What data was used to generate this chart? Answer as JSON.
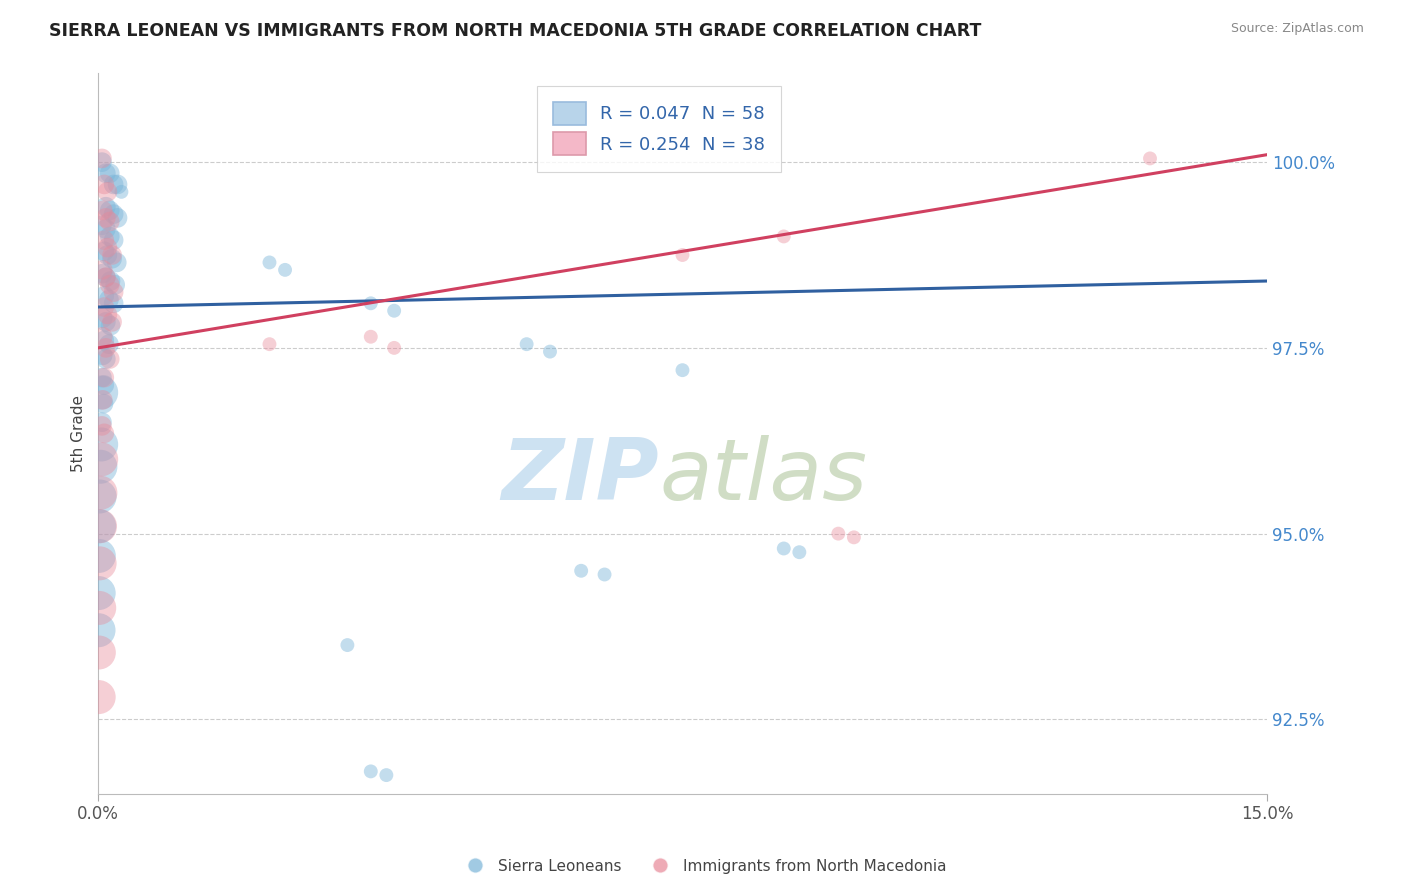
{
  "title": "SIERRA LEONEAN VS IMMIGRANTS FROM NORTH MACEDONIA 5TH GRADE CORRELATION CHART",
  "source": "Source: ZipAtlas.com",
  "ylabel": "5th Grade",
  "xlim": [
    0.0,
    15.0
  ],
  "ylim": [
    91.5,
    101.2
  ],
  "ytick_values": [
    92.5,
    95.0,
    97.5,
    100.0
  ],
  "legend_entries": [
    {
      "label": "R = 0.047  N = 58",
      "color": "#b8d4ea"
    },
    {
      "label": "R = 0.254  N = 38",
      "color": "#f4b8c8"
    }
  ],
  "legend_labels": [
    "Sierra Leoneans",
    "Immigrants from North Macedonia"
  ],
  "blue_color": "#7ab4d8",
  "pink_color": "#e88898",
  "blue_line_color": "#3060a0",
  "pink_line_color": "#d04060",
  "watermark_zip": "ZIP",
  "watermark_atlas": "atlas",
  "background_color": "#ffffff",
  "grid_color": "#cccccc",
  "blue_line_y0": 98.05,
  "blue_line_y1": 98.4,
  "pink_line_y0": 97.5,
  "pink_line_y1": 100.1,
  "blue_points": [
    [
      0.05,
      100.0
    ],
    [
      0.1,
      99.85
    ],
    [
      0.15,
      99.85
    ],
    [
      0.2,
      99.7
    ],
    [
      0.25,
      99.7
    ],
    [
      0.3,
      99.6
    ],
    [
      0.1,
      99.4
    ],
    [
      0.15,
      99.35
    ],
    [
      0.2,
      99.3
    ],
    [
      0.25,
      99.25
    ],
    [
      0.05,
      99.15
    ],
    [
      0.1,
      99.1
    ],
    [
      0.15,
      99.0
    ],
    [
      0.2,
      98.95
    ],
    [
      0.08,
      98.8
    ],
    [
      0.12,
      98.75
    ],
    [
      0.18,
      98.7
    ],
    [
      0.24,
      98.65
    ],
    [
      0.06,
      98.5
    ],
    [
      0.1,
      98.45
    ],
    [
      0.16,
      98.4
    ],
    [
      0.22,
      98.35
    ],
    [
      0.08,
      98.2
    ],
    [
      0.14,
      98.15
    ],
    [
      0.2,
      98.1
    ],
    [
      0.06,
      97.9
    ],
    [
      0.1,
      97.85
    ],
    [
      0.16,
      97.8
    ],
    [
      0.08,
      97.6
    ],
    [
      0.14,
      97.55
    ],
    [
      0.06,
      97.4
    ],
    [
      0.1,
      97.35
    ],
    [
      0.05,
      97.1
    ],
    [
      0.08,
      97.0
    ],
    [
      0.04,
      96.9
    ],
    [
      0.07,
      96.75
    ],
    [
      0.05,
      96.5
    ],
    [
      0.04,
      96.2
    ],
    [
      0.03,
      95.9
    ],
    [
      0.02,
      95.5
    ],
    [
      0.015,
      95.1
    ],
    [
      0.01,
      94.7
    ],
    [
      0.008,
      94.2
    ],
    [
      0.006,
      93.7
    ],
    [
      2.2,
      98.65
    ],
    [
      2.4,
      98.55
    ],
    [
      3.5,
      98.1
    ],
    [
      3.8,
      98.0
    ],
    [
      5.5,
      97.55
    ],
    [
      5.8,
      97.45
    ],
    [
      7.5,
      97.2
    ],
    [
      8.8,
      94.8
    ],
    [
      9.0,
      94.75
    ],
    [
      6.2,
      94.5
    ],
    [
      6.5,
      94.45
    ],
    [
      3.2,
      93.5
    ],
    [
      3.5,
      91.8
    ],
    [
      3.7,
      91.75
    ]
  ],
  "pink_points": [
    [
      0.05,
      100.05
    ],
    [
      0.08,
      99.7
    ],
    [
      0.12,
      99.6
    ],
    [
      0.06,
      99.35
    ],
    [
      0.1,
      99.25
    ],
    [
      0.15,
      99.2
    ],
    [
      0.08,
      98.95
    ],
    [
      0.12,
      98.85
    ],
    [
      0.18,
      98.75
    ],
    [
      0.06,
      98.55
    ],
    [
      0.1,
      98.45
    ],
    [
      0.15,
      98.35
    ],
    [
      0.2,
      98.25
    ],
    [
      0.08,
      98.05
    ],
    [
      0.12,
      97.95
    ],
    [
      0.18,
      97.85
    ],
    [
      0.06,
      97.65
    ],
    [
      0.1,
      97.5
    ],
    [
      0.15,
      97.35
    ],
    [
      0.08,
      97.1
    ],
    [
      0.06,
      96.8
    ],
    [
      0.05,
      96.45
    ],
    [
      0.08,
      96.35
    ],
    [
      0.04,
      96.0
    ],
    [
      0.03,
      95.55
    ],
    [
      0.025,
      95.1
    ],
    [
      0.02,
      94.6
    ],
    [
      0.015,
      94.0
    ],
    [
      0.01,
      93.4
    ],
    [
      0.008,
      92.8
    ],
    [
      2.2,
      97.55
    ],
    [
      3.5,
      97.65
    ],
    [
      3.8,
      97.5
    ],
    [
      7.5,
      98.75
    ],
    [
      8.8,
      99.0
    ],
    [
      9.5,
      95.0
    ],
    [
      9.7,
      94.95
    ],
    [
      13.5,
      100.05
    ]
  ]
}
